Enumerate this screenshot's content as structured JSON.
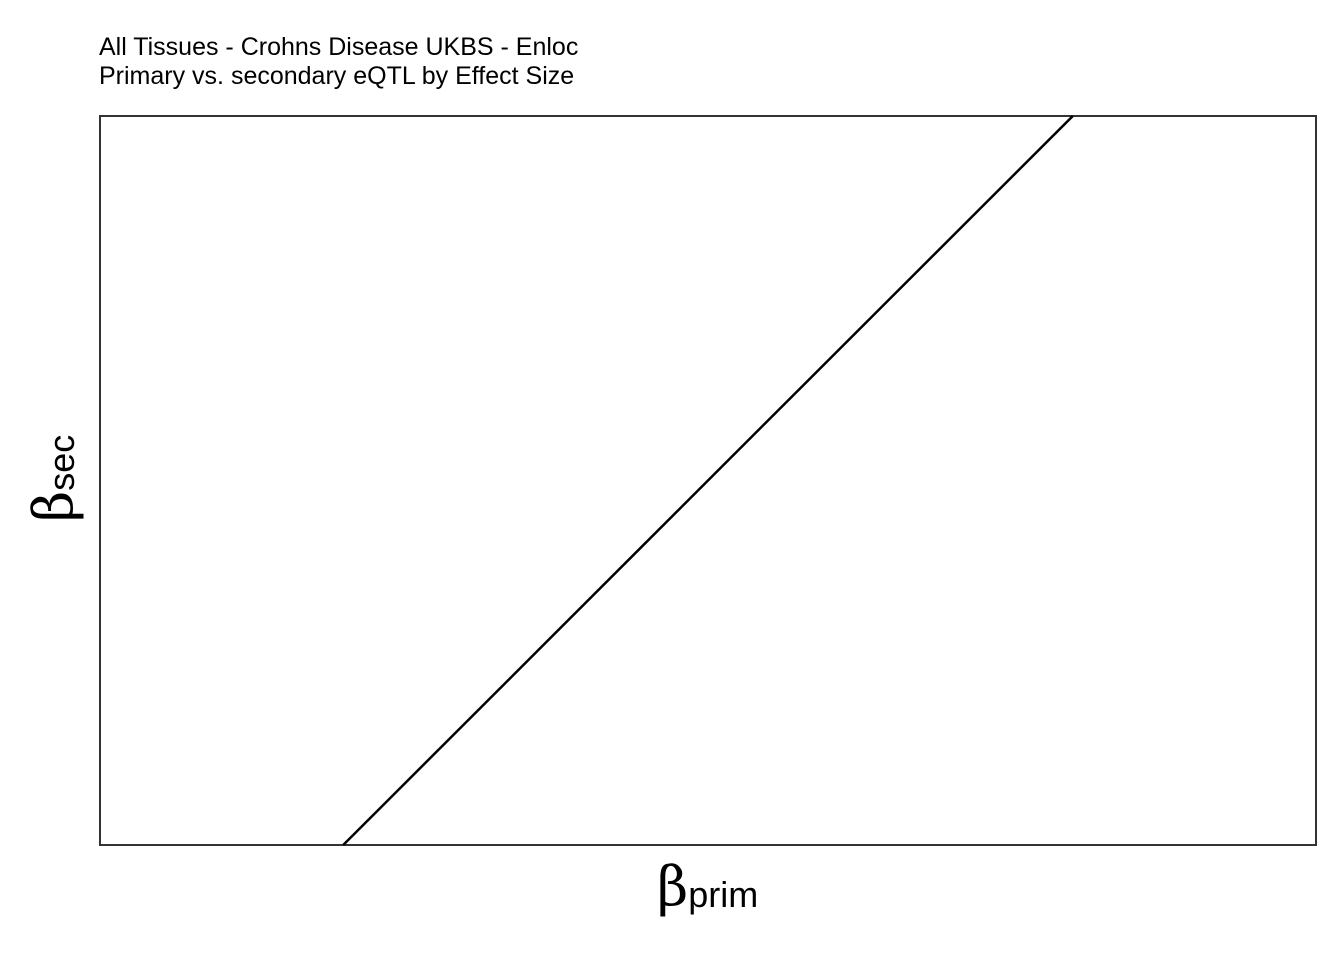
{
  "chart_data": {
    "type": "line",
    "title": "All Tissues - Crohns Disease UKBS - Enloc",
    "subtitle": "Primary vs. secondary eQTL by Effect Size",
    "xlabel": {
      "symbol": "β",
      "subscript": "prim"
    },
    "ylabel": {
      "symbol": "β",
      "subscript": "sec"
    },
    "xlim": [
      0,
      1
    ],
    "ylim": [
      0,
      1
    ],
    "grid": false,
    "legend": "none",
    "series": [
      {
        "x": [
          0.2,
          0.8
        ],
        "y": [
          0,
          1
        ]
      }
    ],
    "colors": {
      "line": "#000000",
      "frame": "#333333",
      "background": "#ffffff"
    }
  }
}
